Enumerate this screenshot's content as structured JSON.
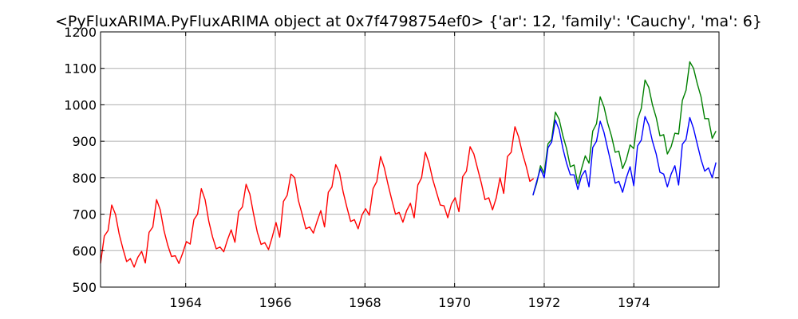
{
  "chart_data": {
    "type": "line",
    "title": "<PyFluxARIMA.PyFluxARIMA object at 0x7f4798754ef0> {'ar': 12, 'family': 'Cauchy', 'ma': 6}",
    "xlabel": "",
    "ylabel": "",
    "xlim": [
      1962.1,
      1975.9
    ],
    "ylim": [
      500,
      1200
    ],
    "grid": true,
    "x_ticks": [
      {
        "value": 1964,
        "label": "1964"
      },
      {
        "value": 1966,
        "label": "1966"
      },
      {
        "value": 1968,
        "label": "1968"
      },
      {
        "value": 1970,
        "label": "1970"
      },
      {
        "value": 1972,
        "label": "1972"
      },
      {
        "value": 1974,
        "label": "1974"
      }
    ],
    "y_ticks": [
      {
        "value": 500,
        "label": "500"
      },
      {
        "value": 600,
        "label": "600"
      },
      {
        "value": 700,
        "label": "700"
      },
      {
        "value": 800,
        "label": "800"
      },
      {
        "value": 900,
        "label": "900"
      },
      {
        "value": 1000,
        "label": "1000"
      },
      {
        "value": 1100,
        "label": "1100"
      },
      {
        "value": 1200,
        "label": "1200"
      }
    ],
    "series": [
      {
        "color": "#ff0000",
        "x_start": 1962.1,
        "x_step": 0.0833,
        "values": [
          565,
          640,
          655,
          725,
          700,
          645,
          605,
          570,
          578,
          555,
          582,
          598,
          566,
          650,
          665,
          740,
          712,
          655,
          615,
          584,
          586,
          565,
          593,
          625,
          618,
          685,
          700,
          770,
          740,
          680,
          638,
          605,
          610,
          597,
          630,
          657,
          623,
          707,
          720,
          782,
          755,
          700,
          650,
          617,
          622,
          603,
          638,
          677,
          637,
          735,
          752,
          810,
          800,
          738,
          700,
          660,
          665,
          648,
          680,
          710,
          665,
          760,
          775,
          836,
          815,
          760,
          718,
          680,
          685,
          660,
          697,
          715,
          697,
          770,
          790,
          858,
          828,
          782,
          740,
          700,
          705,
          678,
          710,
          730,
          690,
          780,
          800,
          870,
          840,
          795,
          760,
          725,
          723,
          690,
          728,
          745,
          707,
          803,
          818,
          885,
          865,
          825,
          785,
          740,
          745,
          712,
          745,
          800,
          757,
          858,
          870,
          940,
          912,
          868,
          832,
          790,
          798
        ]
      },
      {
        "color": "#008000",
        "x_start": 1971.75,
        "x_step": 0.0833,
        "values": [
          752,
          785,
          833,
          812,
          893,
          905,
          980,
          960,
          915,
          880,
          830,
          835,
          783,
          825,
          860,
          840,
          928,
          948,
          1022,
          995,
          950,
          915,
          870,
          873,
          825,
          850,
          890,
          880,
          960,
          990,
          1068,
          1048,
          1000,
          965,
          915,
          918,
          865,
          885,
          922,
          920,
          1012,
          1040,
          1118,
          1100,
          1058,
          1022,
          962,
          962,
          908,
          928
        ]
      },
      {
        "color": "#0000ff",
        "x_start": 1971.75,
        "x_step": 0.0833,
        "values": [
          752,
          790,
          825,
          800,
          882,
          898,
          958,
          932,
          880,
          840,
          808,
          808,
          768,
          805,
          820,
          775,
          883,
          900,
          955,
          925,
          880,
          835,
          785,
          790,
          760,
          800,
          830,
          778,
          887,
          903,
          968,
          945,
          900,
          865,
          815,
          810,
          775,
          810,
          833,
          780,
          892,
          905,
          965,
          935,
          892,
          850,
          818,
          827,
          800,
          842
        ]
      }
    ]
  }
}
